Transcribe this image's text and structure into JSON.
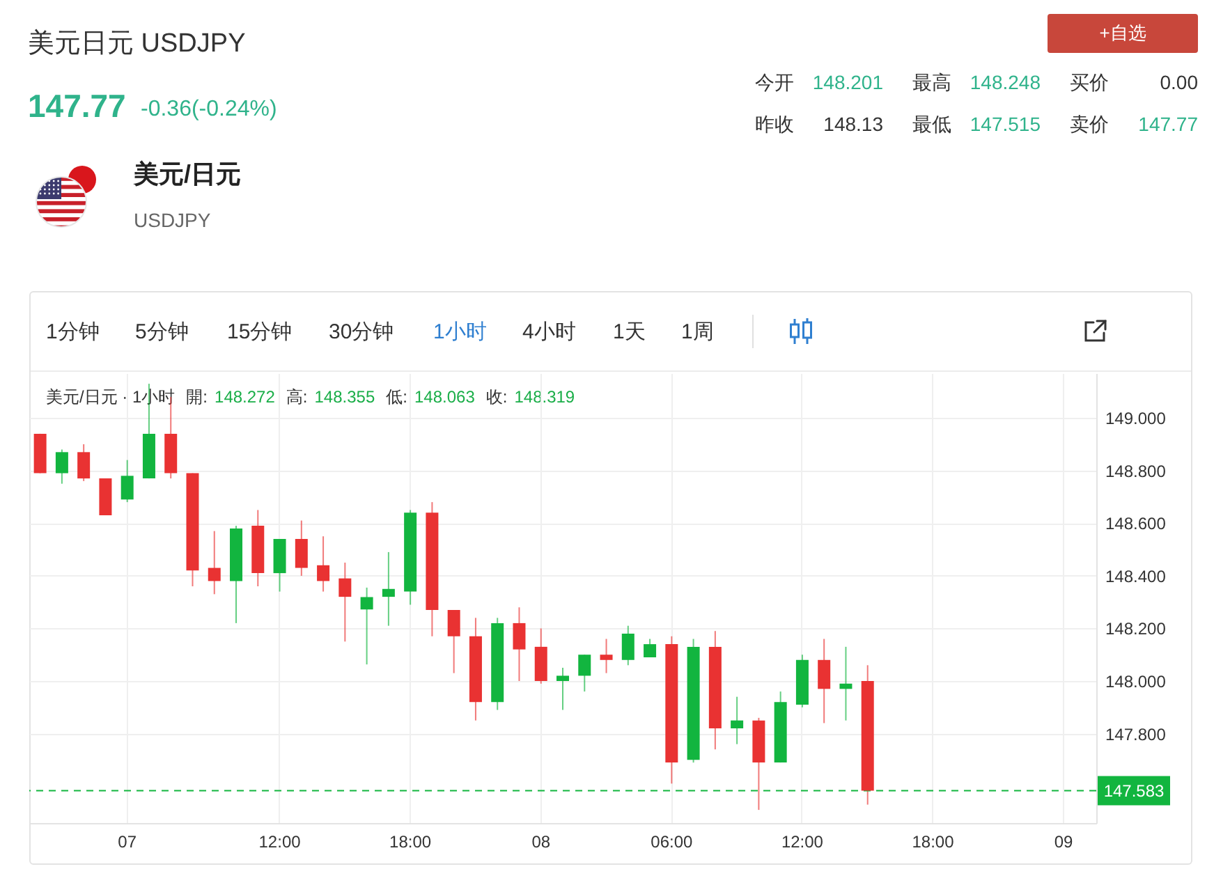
{
  "chart_data": {
    "type": "candlestick",
    "title": "美元日元 USDJPY",
    "categories": [
      null,
      null,
      null,
      null,
      "07",
      null,
      null,
      null,
      null,
      null,
      null,
      "12:00",
      null,
      null,
      null,
      null,
      null,
      "18:00",
      null,
      null,
      null,
      null,
      null,
      "08",
      null,
      null,
      null,
      null,
      null,
      "06:00",
      null,
      null,
      null,
      null,
      null,
      "12:00",
      null,
      null,
      null,
      null,
      null,
      "18:00",
      null,
      null,
      null,
      null,
      null,
      "09",
      null
    ],
    "ohlc": [
      [
        148.94,
        148.94,
        148.79,
        148.79
      ],
      [
        148.79,
        148.88,
        148.75,
        148.87
      ],
      [
        148.87,
        148.9,
        148.76,
        148.77
      ],
      [
        148.77,
        148.77,
        148.63,
        148.63
      ],
      [
        148.69,
        148.84,
        148.68,
        148.78
      ],
      [
        148.77,
        149.13,
        148.77,
        148.94
      ],
      [
        148.94,
        149.08,
        148.77,
        148.79
      ],
      [
        148.79,
        148.79,
        148.36,
        148.42
      ],
      [
        148.43,
        148.57,
        148.33,
        148.38
      ],
      [
        148.38,
        148.59,
        148.22,
        148.58
      ],
      [
        148.59,
        148.65,
        148.36,
        148.41
      ],
      [
        148.41,
        148.54,
        148.34,
        148.54
      ],
      [
        148.54,
        148.61,
        148.4,
        148.43
      ],
      [
        148.44,
        148.55,
        148.34,
        148.38
      ],
      [
        148.39,
        148.45,
        148.15,
        148.32
      ],
      [
        148.272,
        148.355,
        148.063,
        148.319
      ],
      [
        148.32,
        148.49,
        148.21,
        148.35
      ],
      [
        148.34,
        148.65,
        148.29,
        148.64
      ],
      [
        148.64,
        148.68,
        148.17,
        148.27
      ],
      [
        148.27,
        148.27,
        148.03,
        148.17
      ],
      [
        148.17,
        148.24,
        147.85,
        147.92
      ],
      [
        147.92,
        148.24,
        147.89,
        148.22
      ],
      [
        148.22,
        148.28,
        148.0,
        148.12
      ],
      [
        148.13,
        148.2,
        147.99,
        148.0
      ],
      [
        148.0,
        148.05,
        147.89,
        148.02
      ],
      [
        148.02,
        148.1,
        147.96,
        148.1
      ],
      [
        148.1,
        148.16,
        148.03,
        148.08
      ],
      [
        148.08,
        148.21,
        148.06,
        148.18
      ],
      [
        148.09,
        148.16,
        148.09,
        148.14
      ],
      [
        148.14,
        148.17,
        147.61,
        147.69
      ],
      [
        147.7,
        148.16,
        147.69,
        148.13
      ],
      [
        148.13,
        148.19,
        147.74,
        147.82
      ],
      [
        147.82,
        147.94,
        147.76,
        147.85
      ],
      [
        147.85,
        147.86,
        147.51,
        147.69
      ],
      [
        147.69,
        147.96,
        147.69,
        147.92
      ],
      [
        147.91,
        148.1,
        147.9,
        148.08
      ],
      [
        148.08,
        148.16,
        147.84,
        147.97
      ],
      [
        147.97,
        148.13,
        147.85,
        147.99
      ],
      [
        148.0,
        148.06,
        147.53,
        147.583
      ],
      null,
      null,
      null,
      null,
      null,
      null,
      null,
      null,
      null,
      null
    ],
    "colors": [
      "#e93232",
      "#12b53f",
      "#e93232",
      "#e93232",
      "#12b53f",
      "#12b53f",
      "#e93232",
      "#e93232",
      "#e93232",
      "#12b53f",
      "#e93232",
      "#12b53f",
      "#e93232",
      "#e93232",
      "#e93232",
      "#12b53f",
      "#12b53f",
      "#12b53f",
      "#e93232",
      "#e93232",
      "#e93232",
      "#12b53f",
      "#e93232",
      "#e93232",
      "#12b53f",
      "#12b53f",
      "#e93232",
      "#12b53f",
      "#12b53f",
      "#e93232",
      "#12b53f",
      "#e93232",
      "#12b53f",
      "#e93232",
      "#12b53f",
      "#12b53f",
      "#e93232",
      "#12b53f",
      "#e93232",
      null,
      null,
      null,
      null,
      null,
      null,
      null,
      null,
      null,
      null
    ],
    "ylim": [
      147.46,
      149.17
    ],
    "yticks": [
      {
        "value": 147.8,
        "label": "147.800"
      },
      {
        "value": 148,
        "label": "148.000"
      },
      {
        "value": 148.2,
        "label": "148.200"
      },
      {
        "value": 148.4,
        "label": "148.400"
      },
      {
        "value": 148.6,
        "label": "148.600"
      },
      {
        "value": 148.8,
        "label": "148.800"
      },
      {
        "value": 149,
        "label": "149.000"
      }
    ],
    "grid": true,
    "ref_lines": [
      {
        "axis": "y",
        "value": 147.583,
        "label": "147.583",
        "color": "#12b53f",
        "line_style": "dashed"
      }
    ],
    "annotations": [
      "147.77",
      "-0.36(-0.24%)",
      "今开",
      "148.201",
      "最高",
      "148.248",
      "买价",
      "0.00",
      "昨收",
      "148.13",
      "最低",
      "147.515",
      "卖价",
      "147.77",
      "+自选",
      "美元/日元",
      "USDJPY",
      "1分钟",
      "5分钟",
      "15分钟",
      "30分钟",
      "1小时",
      "4小时",
      "1天",
      "1周",
      "美元/日元 · 1小时",
      "開:",
      "148.272",
      "高:",
      "148.355",
      "低:",
      "148.063",
      "收:",
      "148.319"
    ]
  }
}
